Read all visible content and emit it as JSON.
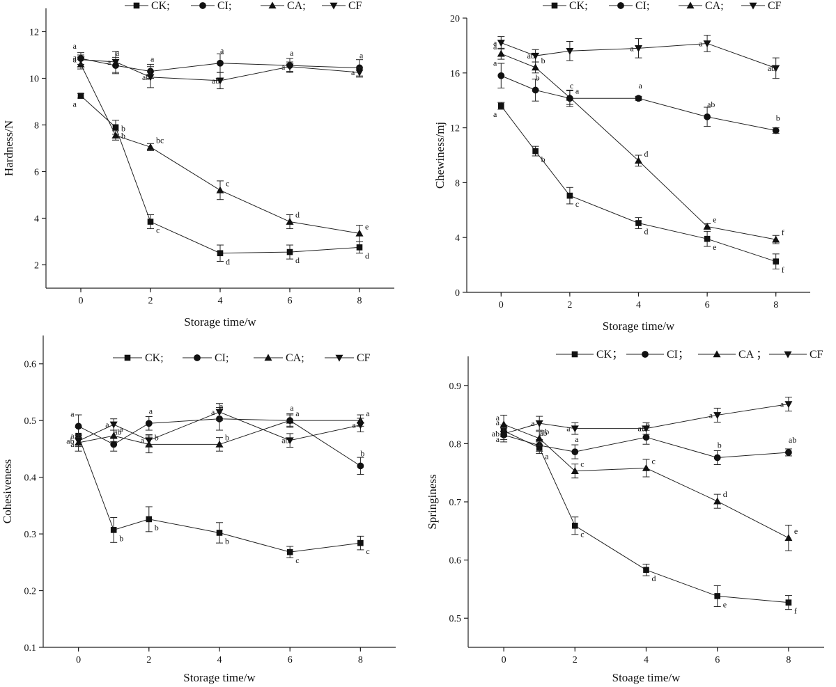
{
  "chart_data": [
    {
      "id": "hardness",
      "type": "line",
      "xlabel": "Storage time/w",
      "ylabel": "Hardness/N",
      "xlim": [
        -1,
        9
      ],
      "xticks": [
        0,
        2,
        4,
        6,
        8
      ],
      "ylim": [
        1,
        13
      ],
      "yticks": [
        2,
        4,
        6,
        8,
        10,
        12
      ],
      "legend": [
        "CK;",
        "CI;",
        "CA;",
        "CF"
      ],
      "series": [
        {
          "name": "CK",
          "marker": "square",
          "x": [
            0,
            1,
            2,
            4,
            6,
            8
          ],
          "y": [
            9.25,
            7.9,
            3.85,
            2.5,
            2.55,
            2.75
          ],
          "err": [
            0.1,
            0.3,
            0.3,
            0.35,
            0.3,
            0.25
          ],
          "labels": [
            "a",
            "b",
            "c",
            "d",
            "d",
            "d"
          ]
        },
        {
          "name": "CI",
          "marker": "circle",
          "x": [
            0,
            1,
            2,
            4,
            6,
            8
          ],
          "y": [
            10.85,
            10.55,
            10.3,
            10.65,
            10.55,
            10.45
          ],
          "err": [
            0.25,
            0.35,
            0.3,
            0.4,
            0.3,
            0.35
          ],
          "labels": [
            "a",
            "a",
            "a",
            "a",
            "a",
            "a"
          ]
        },
        {
          "name": "CA",
          "marker": "triangle-up",
          "x": [
            0,
            1,
            2,
            4,
            6,
            8
          ],
          "y": [
            10.6,
            7.55,
            7.05,
            5.2,
            3.85,
            3.35
          ],
          "err": [
            0.2,
            0.2,
            0.15,
            0.4,
            0.3,
            0.35
          ],
          "labels": [
            "a",
            "b",
            "bc",
            "c",
            "d",
            "e"
          ]
        },
        {
          "name": "CF",
          "marker": "triangle-down",
          "x": [
            0,
            1,
            2,
            4,
            6,
            8
          ],
          "y": [
            10.8,
            10.7,
            10.05,
            9.9,
            10.5,
            10.25
          ],
          "err": [
            0.2,
            0.45,
            0.45,
            0.35,
            0.2,
            0.2
          ],
          "labels": [
            "a",
            "a",
            "ab",
            "ab",
            "a",
            "a"
          ]
        }
      ]
    },
    {
      "id": "chewiness",
      "type": "line",
      "xlabel": "Storage time/w",
      "ylabel": "Chewiness/mj",
      "xlim": [
        -1,
        9
      ],
      "xticks": [
        0,
        2,
        4,
        6,
        8
      ],
      "ylim": [
        0,
        20
      ],
      "yticks": [
        0,
        4,
        8,
        12,
        16,
        20
      ],
      "legend": [
        "CK;",
        "CI;",
        "CA;",
        "CF"
      ],
      "series": [
        {
          "name": "CK",
          "marker": "square",
          "x": [
            0,
            1,
            2,
            4,
            6,
            8
          ],
          "y": [
            13.6,
            10.3,
            7.05,
            5.05,
            3.9,
            2.25
          ],
          "err": [
            0.25,
            0.35,
            0.6,
            0.4,
            0.55,
            0.55
          ],
          "labels": [
            "a",
            "b",
            "c",
            "d",
            "e",
            "f"
          ]
        },
        {
          "name": "CI",
          "marker": "circle",
          "x": [
            0,
            1,
            2,
            4,
            6,
            8
          ],
          "y": [
            15.8,
            14.75,
            14.15,
            14.15,
            12.8,
            11.8
          ],
          "err": [
            0.9,
            0.8,
            0.6,
            0.15,
            0.7,
            0.2
          ],
          "labels": [
            "a",
            "b",
            "c",
            "a",
            "ab",
            "b"
          ]
        },
        {
          "name": "CA",
          "marker": "triangle-up",
          "x": [
            0,
            1,
            2,
            4,
            6,
            8
          ],
          "y": [
            17.4,
            16.4,
            14.2,
            9.6,
            4.8,
            3.85
          ],
          "err": [
            0.4,
            0.4,
            0.5,
            0.4,
            0.2,
            0.3
          ],
          "labels": [
            "a",
            "b",
            "a",
            "d",
            "e",
            "f"
          ]
        },
        {
          "name": "CF",
          "marker": "triangle-down",
          "x": [
            0,
            1,
            2,
            4,
            6,
            8
          ],
          "y": [
            18.2,
            17.25,
            17.6,
            17.8,
            18.15,
            16.35
          ],
          "err": [
            0.45,
            0.45,
            0.7,
            0.7,
            0.6,
            0.75
          ],
          "labels": [
            "a",
            "ab",
            "",
            "a",
            "a",
            "ab"
          ]
        }
      ]
    },
    {
      "id": "cohesiveness",
      "type": "line",
      "xlabel": "Storage time/w",
      "ylabel": "Cohesiveness",
      "xlim": [
        -1,
        9
      ],
      "xticks": [
        0,
        2,
        4,
        6,
        8
      ],
      "ylim": [
        0.1,
        0.65
      ],
      "yticks": [
        0.1,
        0.2,
        0.3,
        0.4,
        0.5,
        0.6
      ],
      "legend": [
        "CK;",
        "CI;",
        "CA;",
        "CF"
      ],
      "series": [
        {
          "name": "CK",
          "marker": "square",
          "x": [
            0,
            1,
            2,
            4,
            6,
            8
          ],
          "y": [
            0.473,
            0.307,
            0.326,
            0.302,
            0.268,
            0.284
          ],
          "err": [
            0.015,
            0.022,
            0.022,
            0.018,
            0.01,
            0.012
          ],
          "labels": [
            "a",
            "b",
            "b",
            "b",
            "c",
            "c"
          ]
        },
        {
          "name": "CI",
          "marker": "circle",
          "x": [
            0,
            1,
            2,
            4,
            6,
            8
          ],
          "y": [
            0.49,
            0.458,
            0.495,
            0.503,
            0.5,
            0.42
          ],
          "err": [
            0.02,
            0.012,
            0.012,
            0.02,
            0.012,
            0.015
          ],
          "labels": [
            "a",
            "ab",
            "a",
            "a",
            "a",
            "b"
          ]
        },
        {
          "name": "CA",
          "marker": "triangle-up",
          "x": [
            0,
            1,
            2,
            4,
            6,
            8
          ],
          "y": [
            0.461,
            0.473,
            0.458,
            0.458,
            0.5,
            0.5
          ],
          "err": [
            0.015,
            0.01,
            0.015,
            0.012,
            0.01,
            0.01
          ],
          "labels": [
            "a",
            "a",
            "b",
            "b",
            "a",
            "a"
          ]
        },
        {
          "name": "CF",
          "marker": "triangle-down",
          "x": [
            0,
            1,
            2,
            4,
            6,
            8
          ],
          "y": [
            0.464,
            0.493,
            0.465,
            0.515,
            0.465,
            0.492
          ],
          "err": [
            0.01,
            0.01,
            0.01,
            0.015,
            0.012,
            0.012
          ],
          "labels": [
            "ab",
            "a",
            "a",
            "a",
            "ab",
            "a"
          ]
        }
      ]
    },
    {
      "id": "springiness",
      "type": "line",
      "xlabel": "Stoage time/w",
      "ylabel": "Springiness",
      "xlim": [
        -1,
        9
      ],
      "xticks": [
        0,
        2,
        4,
        6,
        8
      ],
      "ylim": [
        0.45,
        0.95
      ],
      "yticks": [
        0.5,
        0.6,
        0.7,
        0.8,
        0.9
      ],
      "legend": [
        "CK；",
        "CI；",
        "CA ；",
        "CF"
      ],
      "series": [
        {
          "name": "CK",
          "marker": "square",
          "x": [
            0,
            1,
            2,
            4,
            6,
            8
          ],
          "y": [
            0.822,
            0.793,
            0.659,
            0.583,
            0.538,
            0.527
          ],
          "err": [
            0.01,
            0.01,
            0.015,
            0.01,
            0.018,
            0.012
          ],
          "labels": [
            "a",
            "a",
            "c",
            "d",
            "e",
            "f"
          ]
        },
        {
          "name": "CI",
          "marker": "circle",
          "x": [
            0,
            1,
            2,
            4,
            6,
            8
          ],
          "y": [
            0.815,
            0.797,
            0.786,
            0.811,
            0.776,
            0.785
          ],
          "err": [
            0.012,
            0.01,
            0.012,
            0.012,
            0.012,
            0.006
          ],
          "labels": [
            "a",
            "ab",
            "a",
            "a",
            "b",
            "ab"
          ]
        },
        {
          "name": "CA",
          "marker": "triangle-up",
          "x": [
            0,
            1,
            2,
            4,
            6,
            8
          ],
          "y": [
            0.833,
            0.809,
            0.753,
            0.758,
            0.701,
            0.638
          ],
          "err": [
            0.016,
            0.012,
            0.012,
            0.015,
            0.012,
            0.022
          ],
          "labels": [
            "a",
            "b",
            "c",
            "c",
            "d",
            "e"
          ]
        },
        {
          "name": "CF",
          "marker": "triangle-down",
          "x": [
            0,
            1,
            2,
            4,
            6,
            8
          ],
          "y": [
            0.817,
            0.835,
            0.826,
            0.826,
            0.849,
            0.868
          ],
          "err": [
            0.01,
            0.012,
            0.01,
            0.01,
            0.012,
            0.012
          ],
          "labels": [
            "ab",
            "a",
            "a",
            "ab",
            "a",
            "a"
          ]
        }
      ]
    }
  ]
}
